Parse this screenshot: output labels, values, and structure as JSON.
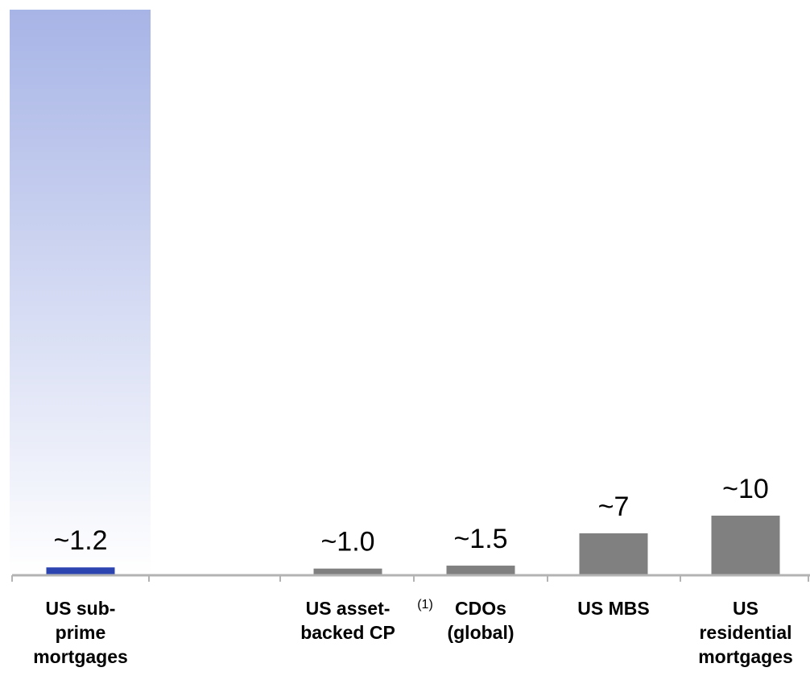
{
  "chart_data": {
    "type": "bar",
    "title": "",
    "xlabel": "",
    "ylabel": "",
    "ylim": [
      0,
      100
    ],
    "grid": false,
    "categories": [
      [
        "US sub-",
        "prime",
        "mortgages"
      ],
      [
        "US asset-",
        "backed CP"
      ],
      [
        "CDOs",
        "(global)"
      ],
      [
        "US MBS"
      ],
      [
        "US",
        "residential",
        "mortgages"
      ]
    ],
    "values": [
      1.2,
      1.0,
      1.5,
      7,
      10
    ],
    "value_labels": [
      "~1.2",
      "~1.0",
      "~1.5",
      "~7",
      "~10"
    ],
    "bar_colors": [
      "#2b44b0",
      "#808080",
      "#808080",
      "#808080",
      "#808080"
    ],
    "highlight_gradient": {
      "category_index": 0,
      "color_top": "#a7b4e6",
      "color_bottom": "#ffffff"
    },
    "footnotes": [
      {
        "category_index": 1,
        "text": "(1)"
      }
    ]
  },
  "colors": {
    "axis": "#b3b3b3",
    "text": "#000000"
  }
}
